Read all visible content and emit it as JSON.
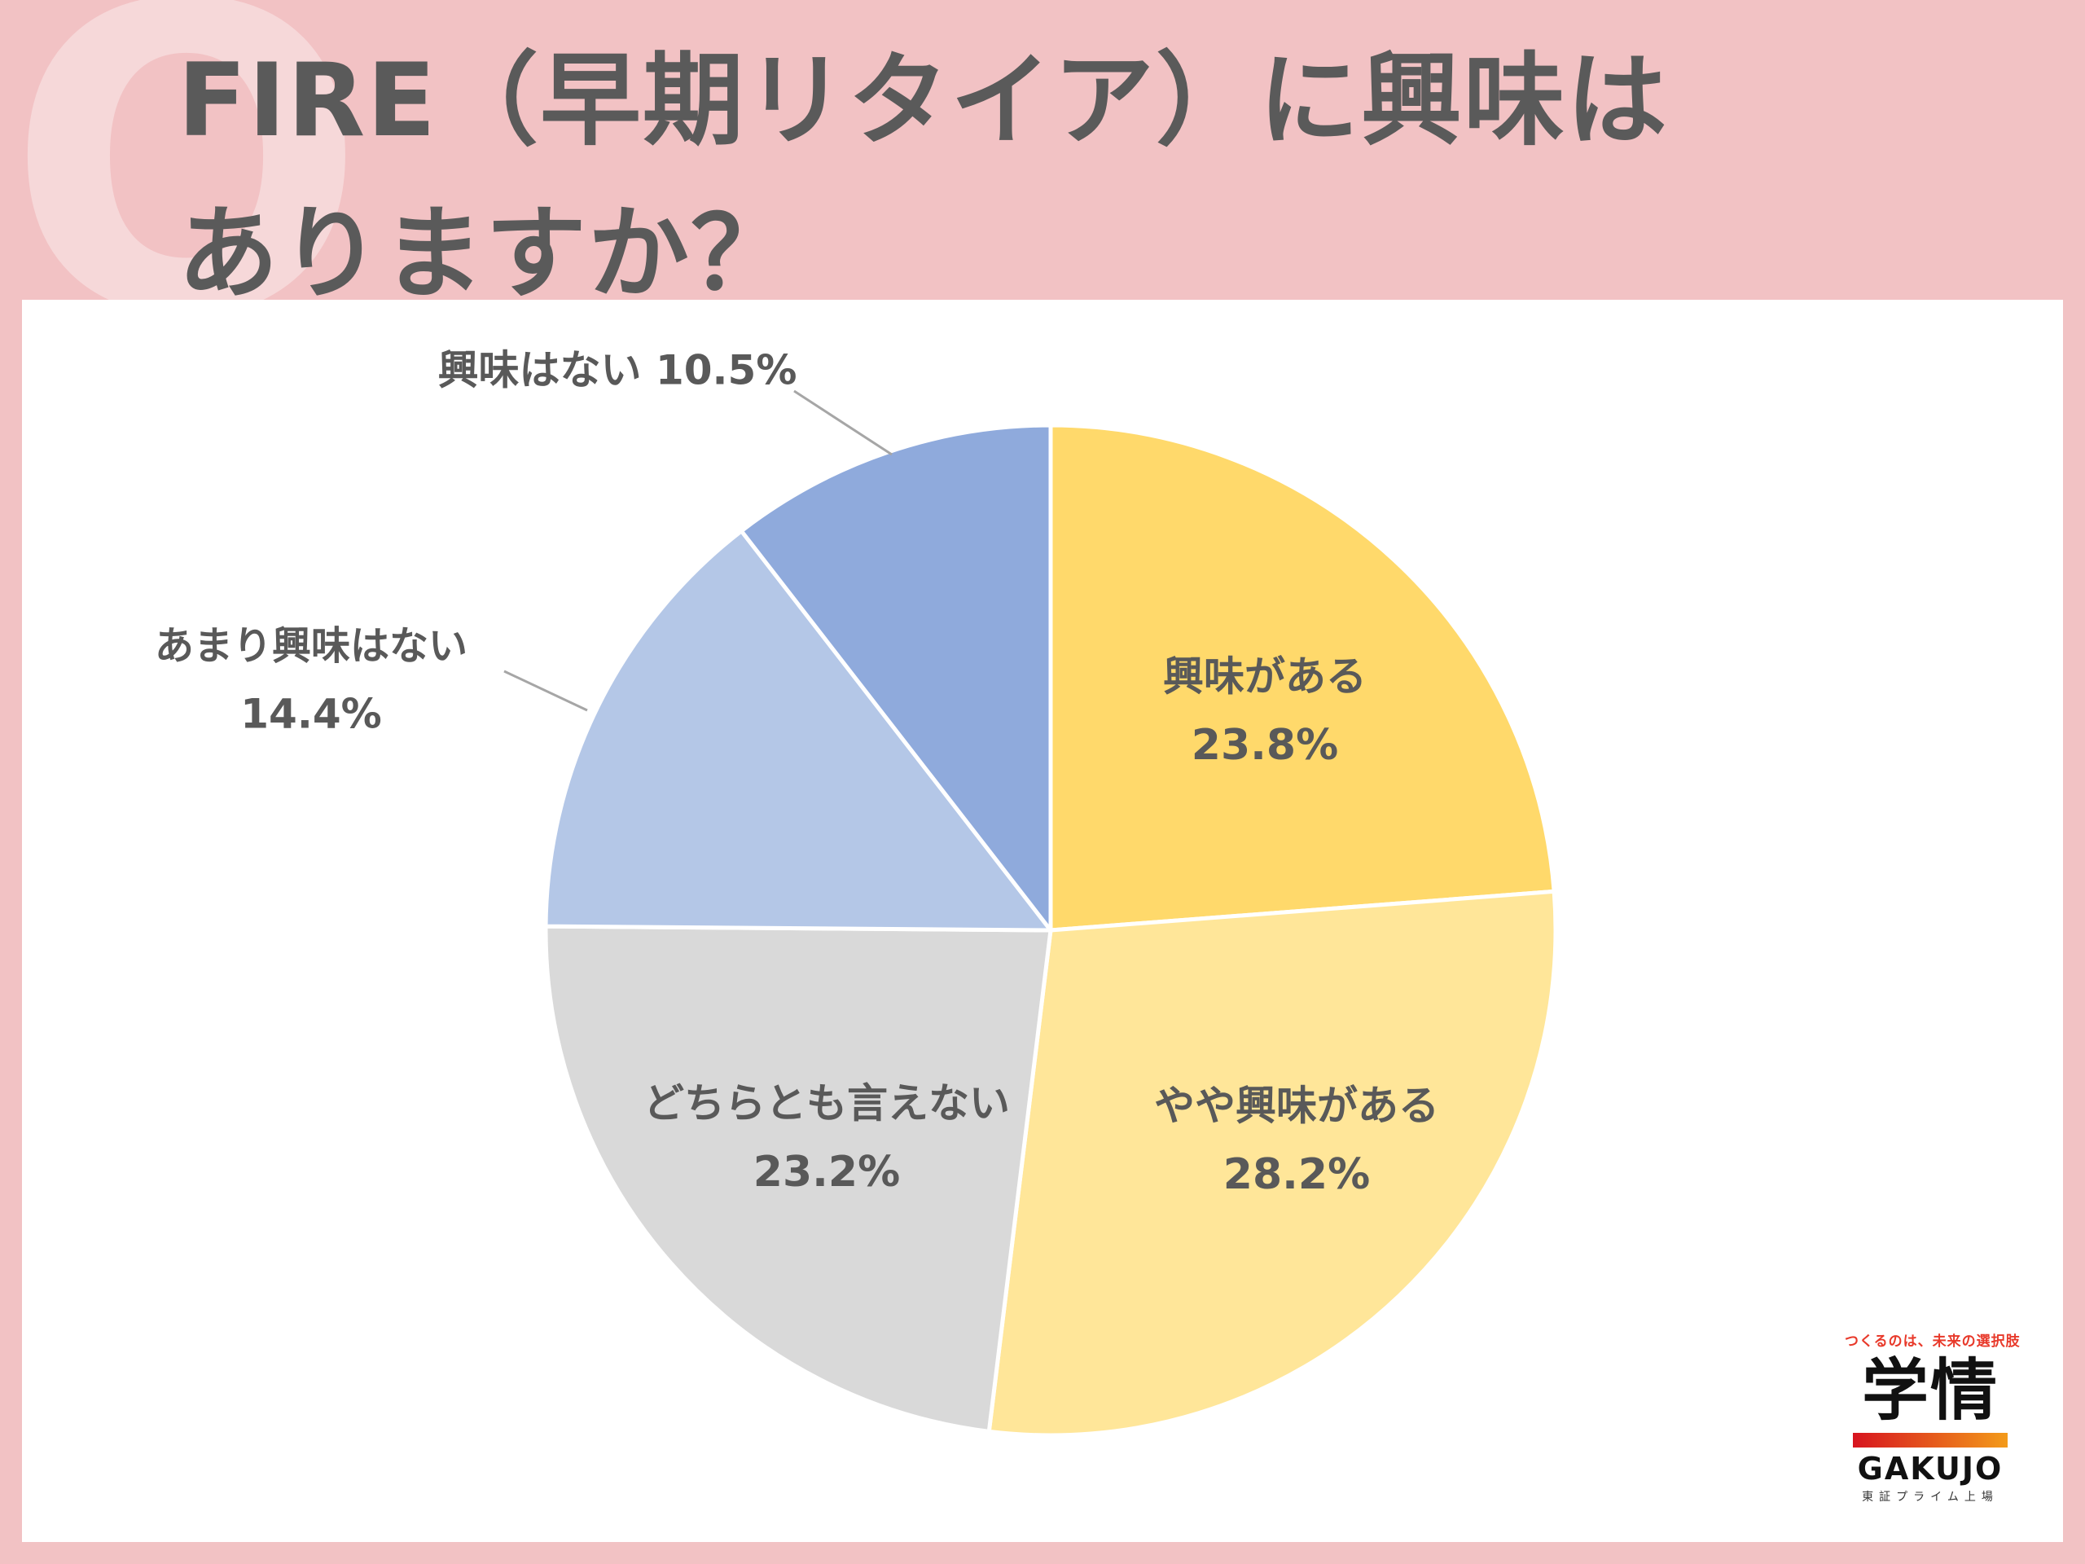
{
  "header": {
    "q_mark": "Q",
    "title_line1": "FIRE（早期リタイア）に興味は",
    "title_line2": "ありますか？"
  },
  "chart_data": {
    "type": "pie",
    "title": "FIRE（早期リタイア）に興味はありますか？",
    "unit": "%",
    "slices": [
      {
        "name": "興味がある",
        "value": 23.8,
        "label": "23.8%",
        "color": "#ffd96b",
        "label_mode": "inside"
      },
      {
        "name": "やや興味がある",
        "value": 28.2,
        "label": "28.2%",
        "color": "#ffe699",
        "label_mode": "inside"
      },
      {
        "name": "どちらとも言えない",
        "value": 23.2,
        "label": "23.2%",
        "color": "#d9d9d9",
        "label_mode": "inside"
      },
      {
        "name": "あまり興味はない",
        "value": 14.4,
        "label": "14.4%",
        "color": "#b4c7e7",
        "label_mode": "outside-two-line"
      },
      {
        "name": "興味はない",
        "value": 10.5,
        "label": "10.5%",
        "color": "#8faadc",
        "label_mode": "outside-one-line"
      }
    ],
    "start": "12 o'clock",
    "direction": "clockwise",
    "legend": "none"
  },
  "logo": {
    "tagline": "つくるのは、未来の選択肢",
    "main": "学情",
    "english": "GAKUJO",
    "sub": "東証プライム上場"
  },
  "colors": {
    "background": "#f2c2c4",
    "title": "#5a5a5a",
    "panel": "#ffffff",
    "leader_line": "#a6a6a6"
  }
}
